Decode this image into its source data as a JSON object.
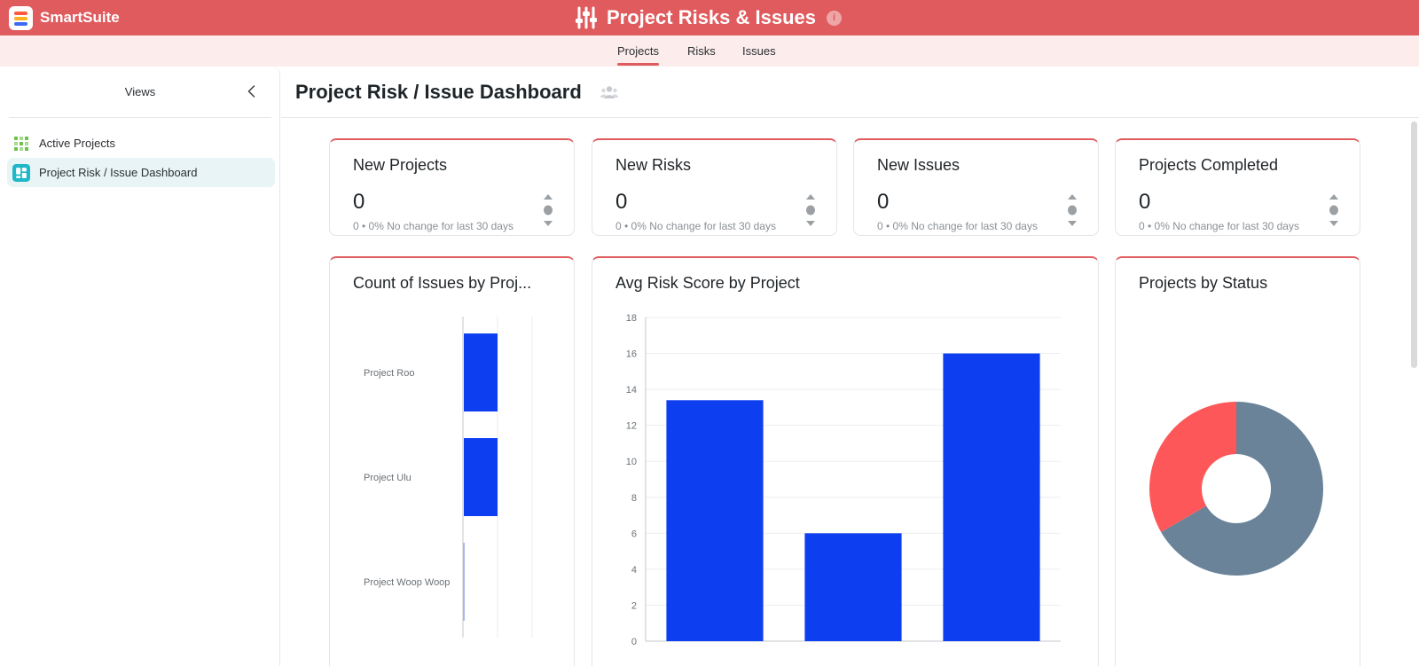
{
  "header": {
    "logo_text": "SmartSuite",
    "app_title": "Project Risks & Issues",
    "info_symbol": "i"
  },
  "tabs": [
    {
      "label": "Projects",
      "active": true
    },
    {
      "label": "Risks",
      "active": false
    },
    {
      "label": "Issues",
      "active": false
    }
  ],
  "sidebar": {
    "title": "Views",
    "items": [
      {
        "label": "Active Projects",
        "icon": "grid-view-icon",
        "selected": false
      },
      {
        "label": "Project Risk / Issue Dashboard",
        "icon": "dashboard-icon",
        "selected": true
      }
    ]
  },
  "dashboard": {
    "title": "Project Risk / Issue Dashboard",
    "metrics": [
      {
        "title": "New Projects",
        "value": "0",
        "sub": "0 • 0%  No change for last 30 days"
      },
      {
        "title": "New Risks",
        "value": "0",
        "sub": "0 • 0%  No change for last 30 days"
      },
      {
        "title": "New Issues",
        "value": "0",
        "sub": "0 • 0%  No change for last 30 days"
      },
      {
        "title": "Projects Completed",
        "value": "0",
        "sub": "0 • 0%  No change for last 30 days"
      }
    ],
    "charts": {
      "issues_title": "Count of Issues by Proj...",
      "risk_title": "Avg Risk Score by Project",
      "status_title": "Projects by Status"
    }
  },
  "colors": {
    "brand": "#e05b5e",
    "bar": "#0d3ff0",
    "pie_red": "#fd5759",
    "pie_slate": "#6a8399"
  },
  "chart_data": [
    {
      "type": "bar",
      "orientation": "horizontal",
      "title": "Count of Issues by Proj...",
      "categories": [
        "Project Roo",
        "Project Ulu",
        "Project Woop Woop"
      ],
      "values": [
        1,
        1,
        0
      ],
      "xlim": [
        0,
        2
      ],
      "grid": true
    },
    {
      "type": "bar",
      "title": "Avg Risk Score by Project",
      "categories": [
        "",
        "",
        ""
      ],
      "values": [
        13.4,
        6,
        16
      ],
      "ylim": [
        0,
        18
      ],
      "yticks": [
        0,
        2,
        4,
        6,
        8,
        10,
        12,
        14,
        16,
        18
      ],
      "grid": true
    },
    {
      "type": "pie",
      "title": "Projects by Status",
      "donut": true,
      "values": [
        2,
        1
      ],
      "colors": [
        "#6a8399",
        "#fd5759"
      ]
    }
  ]
}
